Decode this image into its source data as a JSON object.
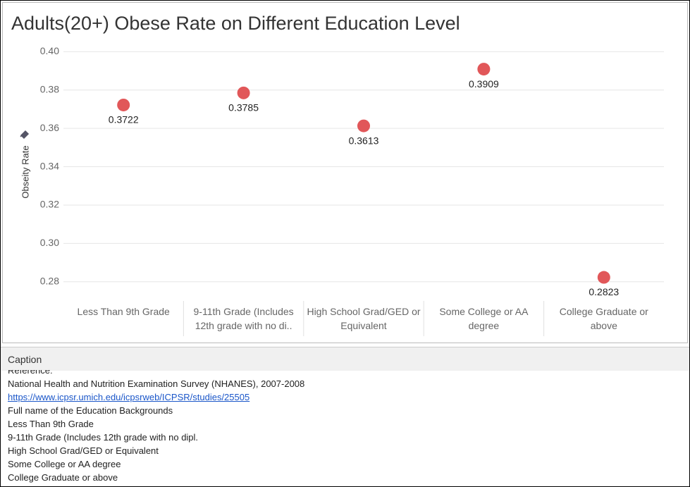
{
  "chart_data": {
    "type": "scatter",
    "title": "Adults(20+) Obese Rate on Different Education Level",
    "y_label": "Obseity Rate",
    "categories": [
      "Less Than 9th Grade",
      "9-11th Grade (Includes 12th grade with no di..",
      "High School Grad/GED or Equivalent",
      "Some College or AA degree",
      "College Graduate or above"
    ],
    "values": [
      0.3722,
      0.3785,
      0.3613,
      0.3909,
      0.2823
    ],
    "color": "#e15759",
    "ylim": [
      0.27,
      0.406
    ],
    "yticks": [
      {
        "value": 0.28,
        "label": "0.28"
      },
      {
        "value": 0.3,
        "label": "0.30"
      },
      {
        "value": 0.32,
        "label": "0.32"
      },
      {
        "value": 0.34,
        "label": "0.34"
      },
      {
        "value": 0.36,
        "label": "0.36"
      },
      {
        "value": 0.38,
        "label": "0.38"
      },
      {
        "value": 0.4,
        "label": "0.40"
      }
    ],
    "grid": true
  },
  "caption": {
    "title": "Caption",
    "lines": [
      "Reference:",
      "National Health and Nutrition Examination Survey (NHANES), 2007-2008"
    ],
    "link": "https://www.icpsr.umich.edu/icpsrweb/ICPSR/studies/25505",
    "notes": [
      "Full name of the Education Backgrounds",
      "Less Than 9th Grade",
      "9-11th Grade (Includes 12th grade with no dipl.",
      "High School Grad/GED or Equivalent",
      "Some College or AA degree",
      "College Graduate or above"
    ]
  }
}
